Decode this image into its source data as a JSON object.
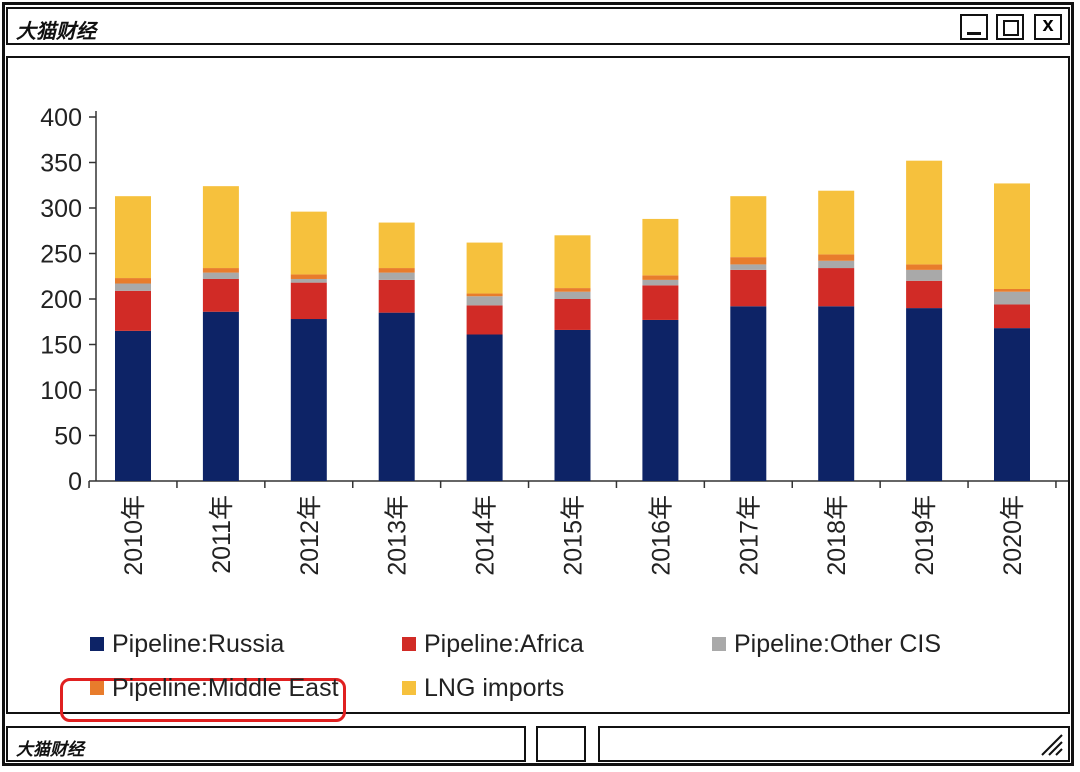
{
  "window": {
    "title": "大猫财经",
    "status_text": "大猫财经",
    "buttons": {
      "close_label": "x"
    }
  },
  "chart_data": {
    "type": "bar",
    "stacked": true,
    "categories": [
      "2010年",
      "2011年",
      "2012年",
      "2013年",
      "2014年",
      "2015年",
      "2016年",
      "2017年",
      "2018年",
      "2019年",
      "2020年"
    ],
    "series": [
      {
        "name": "Pipeline:Russia",
        "color": "#0d2366",
        "values": [
          165,
          186,
          178,
          185,
          161,
          166,
          177,
          192,
          192,
          190,
          168
        ]
      },
      {
        "name": "Pipeline:Africa",
        "color": "#d12b26",
        "values": [
          44,
          36,
          40,
          36,
          32,
          34,
          38,
          40,
          42,
          30,
          26
        ]
      },
      {
        "name": "Pipeline:Other CIS",
        "color": "#a9a9a9",
        "values": [
          8,
          7,
          4,
          8,
          10,
          8,
          6,
          6,
          8,
          12,
          14
        ]
      },
      {
        "name": "Pipeline:Middle East",
        "color": "#e87c2c",
        "values": [
          6,
          5,
          5,
          5,
          3,
          4,
          5,
          8,
          7,
          6,
          3
        ]
      },
      {
        "name": "LNG imports",
        "color": "#f6c13d",
        "values": [
          90,
          90,
          69,
          50,
          56,
          58,
          62,
          67,
          70,
          114,
          116
        ]
      }
    ],
    "ylim": [
      0,
      400
    ],
    "yticks": [
      0,
      50,
      100,
      150,
      200,
      250,
      300,
      350,
      400
    ],
    "title": "",
    "xlabel": "",
    "ylabel": "",
    "legend_position": "bottom",
    "highlighted_legend_entry": "Pipeline:Russia"
  }
}
